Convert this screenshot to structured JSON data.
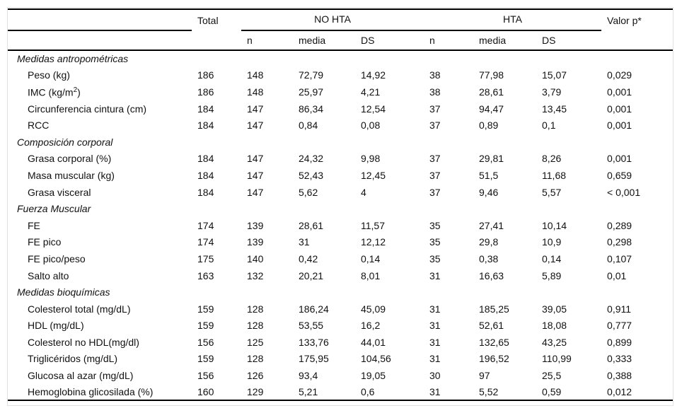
{
  "table": {
    "header": {
      "label_col": "",
      "total": "Total",
      "group_no_hta": "NO HTA",
      "group_hta": "HTA",
      "valor_p": "Valor p*",
      "sub": [
        "n",
        "media",
        "DS",
        "n",
        "media",
        "DS"
      ]
    },
    "sections": [
      {
        "title": "Medidas antropométricas",
        "rows": [
          {
            "label": "Peso (kg)",
            "total": "186",
            "no_hta": {
              "n": "148",
              "media": "72,79",
              "ds": "14,92"
            },
            "hta": {
              "n": "38",
              "media": "77,98",
              "ds": "15,07"
            },
            "p": "0,029"
          },
          {
            "label": "IMC (kg/m²)",
            "total": "186",
            "no_hta": {
              "n": "148",
              "media": "25,97",
              "ds": "4,21"
            },
            "hta": {
              "n": "38",
              "media": "28,61",
              "ds": "3,79"
            },
            "p": "0,001"
          },
          {
            "label": "Circunferencia cintura (cm)",
            "total": "184",
            "no_hta": {
              "n": "147",
              "media": "86,34",
              "ds": "12,54"
            },
            "hta": {
              "n": "37",
              "media": "94,47",
              "ds": "13,45"
            },
            "p": "0,001"
          },
          {
            "label": "RCC",
            "total": "184",
            "no_hta": {
              "n": "147",
              "media": "0,84",
              "ds": "0,08"
            },
            "hta": {
              "n": "37",
              "media": "0,89",
              "ds": "0,1"
            },
            "p": "0,001"
          }
        ]
      },
      {
        "title": "Composición corporal",
        "rows": [
          {
            "label": "Grasa corporal (%)",
            "total": "184",
            "no_hta": {
              "n": "147",
              "media": "24,32",
              "ds": "9,98"
            },
            "hta": {
              "n": "37",
              "media": "29,81",
              "ds": "8,26"
            },
            "p": "0,001"
          },
          {
            "label": "Masa muscular (kg)",
            "total": "184",
            "no_hta": {
              "n": "147",
              "media": "52,43",
              "ds": "12,45"
            },
            "hta": {
              "n": "37",
              "media": "51,5",
              "ds": "11,68"
            },
            "p": "0,659"
          },
          {
            "label": "Grasa visceral",
            "total": "184",
            "no_hta": {
              "n": "147",
              "media": "5,62",
              "ds": "4"
            },
            "hta": {
              "n": "37",
              "media": "9,46",
              "ds": "5,57"
            },
            "p": "< 0,001"
          }
        ]
      },
      {
        "title": "Fuerza Muscular",
        "rows": [
          {
            "label": "FE",
            "total": "174",
            "no_hta": {
              "n": "139",
              "media": "28,61",
              "ds": "11,57"
            },
            "hta": {
              "n": "35",
              "media": "27,41",
              "ds": "10,14"
            },
            "p": "0,289"
          },
          {
            "label": "FE pico",
            "total": "174",
            "no_hta": {
              "n": "139",
              "media": "31",
              "ds": "12,12"
            },
            "hta": {
              "n": "35",
              "media": "29,8",
              "ds": "10,9"
            },
            "p": "0,298"
          },
          {
            "label": "FE pico/peso",
            "total": "175",
            "no_hta": {
              "n": "140",
              "media": "0,42",
              "ds": "0,14"
            },
            "hta": {
              "n": "35",
              "media": "0,38",
              "ds": "0,14"
            },
            "p": "0,107"
          },
          {
            "label": "Salto alto",
            "total": "163",
            "no_hta": {
              "n": "132",
              "media": "20,21",
              "ds": "8,01"
            },
            "hta": {
              "n": "31",
              "media": "16,63",
              "ds": "5,89"
            },
            "p": "0,01"
          }
        ]
      },
      {
        "title": "Medidas bioquímicas",
        "rows": [
          {
            "label": "Colesterol total (mg/dL)",
            "total": "159",
            "no_hta": {
              "n": "128",
              "media": "186,24",
              "ds": "45,09"
            },
            "hta": {
              "n": "31",
              "media": "185,25",
              "ds": "39,05"
            },
            "p": "0,911"
          },
          {
            "label": "HDL (mg/dL)",
            "total": "159",
            "no_hta": {
              "n": "128",
              "media": "53,55",
              "ds": "16,2"
            },
            "hta": {
              "n": "31",
              "media": "52,61",
              "ds": "18,08"
            },
            "p": "0,777"
          },
          {
            "label": "Colesterol no HDL(mg/dl)",
            "total": "156",
            "no_hta": {
              "n": "125",
              "media": "133,76",
              "ds": "44,01"
            },
            "hta": {
              "n": "31",
              "media": "132,65",
              "ds": "43,25"
            },
            "p": "0,899"
          },
          {
            "label": "Triglicéridos (mg/dL)",
            "total": "159",
            "no_hta": {
              "n": "128",
              "media": "175,95",
              "ds": "104,56"
            },
            "hta": {
              "n": "31",
              "media": "196,52",
              "ds": "110,99"
            },
            "p": "0,333"
          },
          {
            "label": "Glucosa al azar (mg/dL)",
            "total": "156",
            "no_hta": {
              "n": "126",
              "media": "93,4",
              "ds": "19,05"
            },
            "hta": {
              "n": "30",
              "media": "97",
              "ds": "25,5"
            },
            "p": "0,388"
          },
          {
            "label": "Hemoglobina glicosilada (%)",
            "total": "160",
            "no_hta": {
              "n": "129",
              "media": "5,21",
              "ds": "0,6"
            },
            "hta": {
              "n": "31",
              "media": "5,52",
              "ds": "0,59"
            },
            "p": "0,012"
          }
        ]
      }
    ]
  }
}
